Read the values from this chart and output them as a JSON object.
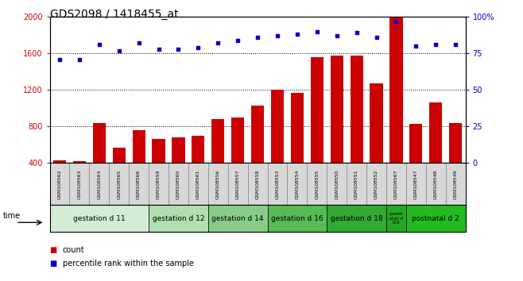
{
  "title": "GDS2098 / 1418455_at",
  "samples": [
    "GSM108562",
    "GSM108563",
    "GSM108564",
    "GSM108565",
    "GSM108566",
    "GSM108559",
    "GSM108560",
    "GSM108561",
    "GSM108556",
    "GSM108557",
    "GSM108558",
    "GSM108553",
    "GSM108554",
    "GSM108555",
    "GSM108550",
    "GSM108551",
    "GSM108552",
    "GSM108567",
    "GSM108547",
    "GSM108548",
    "GSM108549"
  ],
  "bar_values": [
    430,
    420,
    840,
    570,
    760,
    660,
    680,
    700,
    880,
    900,
    1030,
    1200,
    1170,
    1560,
    1580,
    1580,
    1270,
    2000,
    830,
    1060,
    840
  ],
  "dot_values": [
    71,
    71,
    81,
    77,
    82,
    78,
    78,
    79,
    82,
    84,
    86,
    87,
    88,
    90,
    87,
    89,
    86,
    97,
    80,
    81,
    81
  ],
  "groups": [
    {
      "label": "gestation d 11",
      "start": 0,
      "end": 5,
      "color": "#d4ecd4"
    },
    {
      "label": "gestation d 12",
      "start": 5,
      "end": 8,
      "color": "#b0deb0"
    },
    {
      "label": "gestation d 14",
      "start": 8,
      "end": 11,
      "color": "#88cc88"
    },
    {
      "label": "gestation d 16",
      "start": 11,
      "end": 14,
      "color": "#55bb55"
    },
    {
      "label": "gestation d 18",
      "start": 14,
      "end": 17,
      "color": "#33aa33"
    },
    {
      "label": "postn\natal d\n0.5",
      "start": 17,
      "end": 18,
      "color": "#22aa22"
    },
    {
      "label": "postnatal d 2",
      "start": 18,
      "end": 21,
      "color": "#22bb22"
    }
  ],
  "bar_color": "#cc0000",
  "dot_color": "#0000cc",
  "ylim_left": [
    400,
    2000
  ],
  "ylim_right": [
    0,
    100
  ],
  "yticks_left": [
    400,
    800,
    1200,
    1600,
    2000
  ],
  "yticks_right": [
    0,
    25,
    50,
    75,
    100
  ],
  "ytick_labels_right": [
    "0",
    "25",
    "50",
    "75",
    "100%"
  ],
  "grid_values": [
    800,
    1200,
    1600
  ],
  "label_color_left": "#cc0000",
  "label_color_right": "#0000cc",
  "title_fontsize": 10,
  "legend_count": "count",
  "legend_pct": "percentile rank within the sample"
}
